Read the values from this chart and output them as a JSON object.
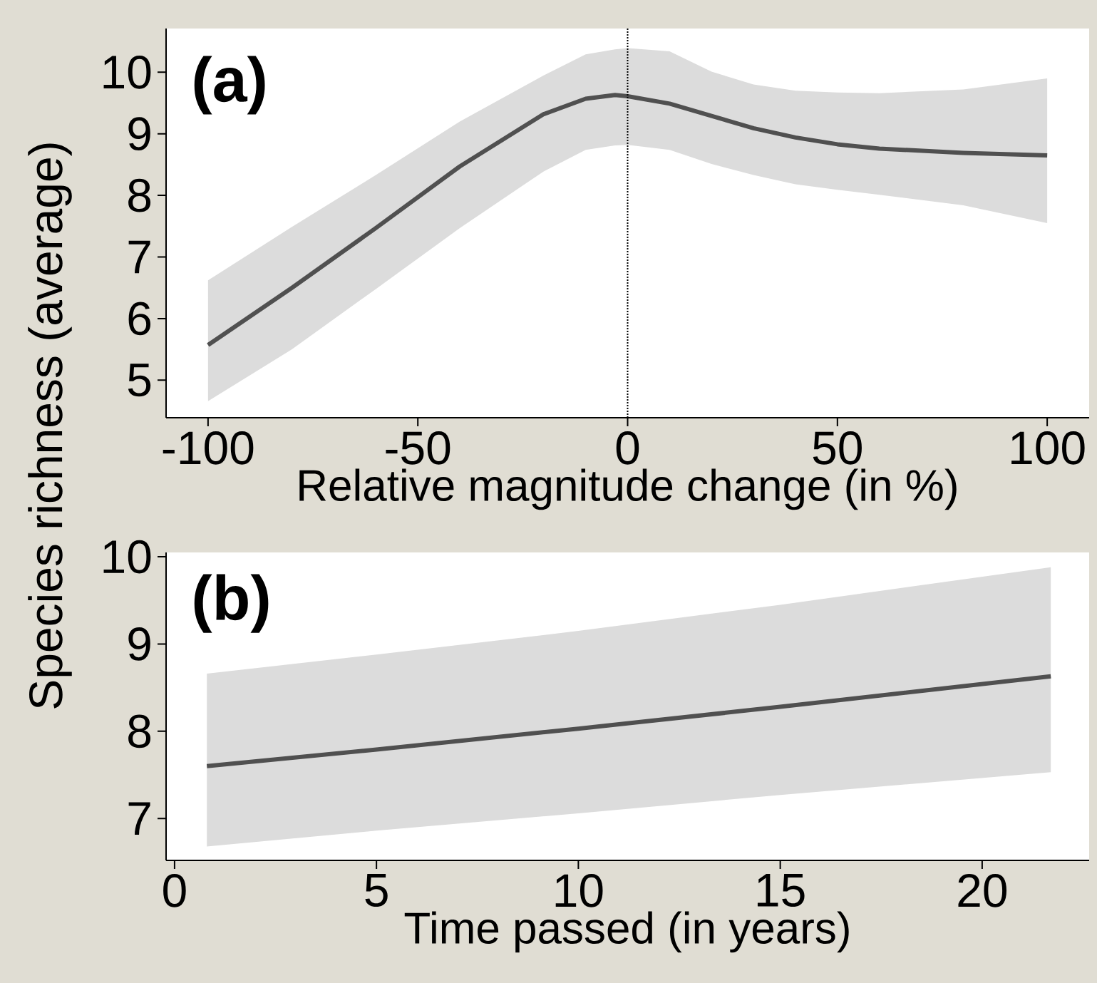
{
  "chart_data": [
    {
      "type": "line",
      "xlabel": "Relative magnitude change (in %)",
      "ylabel": "Species richness (average)",
      "annotations": [
        "(a)"
      ],
      "xlim": [
        -110,
        110
      ],
      "ylim": [
        4.39,
        10.71
      ],
      "xticks": [
        -100,
        -50,
        0,
        50,
        100
      ],
      "yticks": [
        5,
        6,
        7,
        8,
        9,
        10
      ],
      "ref_lines": [
        {
          "axis": "x",
          "value": 0,
          "line_style": "dotted",
          "color": "#000000"
        }
      ],
      "series": [
        {
          "color": "#505050",
          "x": [
            -100,
            -80,
            -60,
            -40,
            -20,
            -10,
            -3,
            0,
            10,
            20,
            30,
            40,
            50,
            60,
            80,
            100
          ],
          "values": [
            5.57,
            6.5,
            7.47,
            8.47,
            9.32,
            9.57,
            9.63,
            9.61,
            9.49,
            9.29,
            9.09,
            8.94,
            8.83,
            8.76,
            8.69,
            8.65
          ],
          "upper": [
            6.62,
            7.49,
            8.33,
            9.2,
            9.95,
            10.29,
            10.37,
            10.39,
            10.34,
            10.01,
            9.8,
            9.7,
            9.67,
            9.66,
            9.72,
            9.9
          ],
          "lower": [
            4.66,
            5.5,
            6.48,
            7.47,
            8.39,
            8.74,
            8.81,
            8.82,
            8.74,
            8.51,
            8.33,
            8.18,
            8.09,
            8.01,
            7.84,
            7.55
          ]
        }
      ]
    },
    {
      "type": "line",
      "xlabel": "Time passed (in years)",
      "annotations": [
        "(b)"
      ],
      "xlim": [
        -0.21,
        22.65
      ],
      "ylim": [
        6.52,
        10.05
      ],
      "xticks": [
        0,
        5,
        10,
        15,
        20
      ],
      "yticks": [
        7,
        8,
        9,
        10
      ],
      "series": [
        {
          "color": "#505050",
          "x": [
            0.8,
            5,
            10,
            15,
            21.7
          ],
          "values": [
            7.6,
            7.79,
            8.03,
            8.28,
            8.63
          ],
          "upper": [
            8.66,
            8.88,
            9.15,
            9.45,
            9.88
          ],
          "lower": [
            6.68,
            6.86,
            7.06,
            7.27,
            7.53
          ]
        }
      ]
    }
  ]
}
